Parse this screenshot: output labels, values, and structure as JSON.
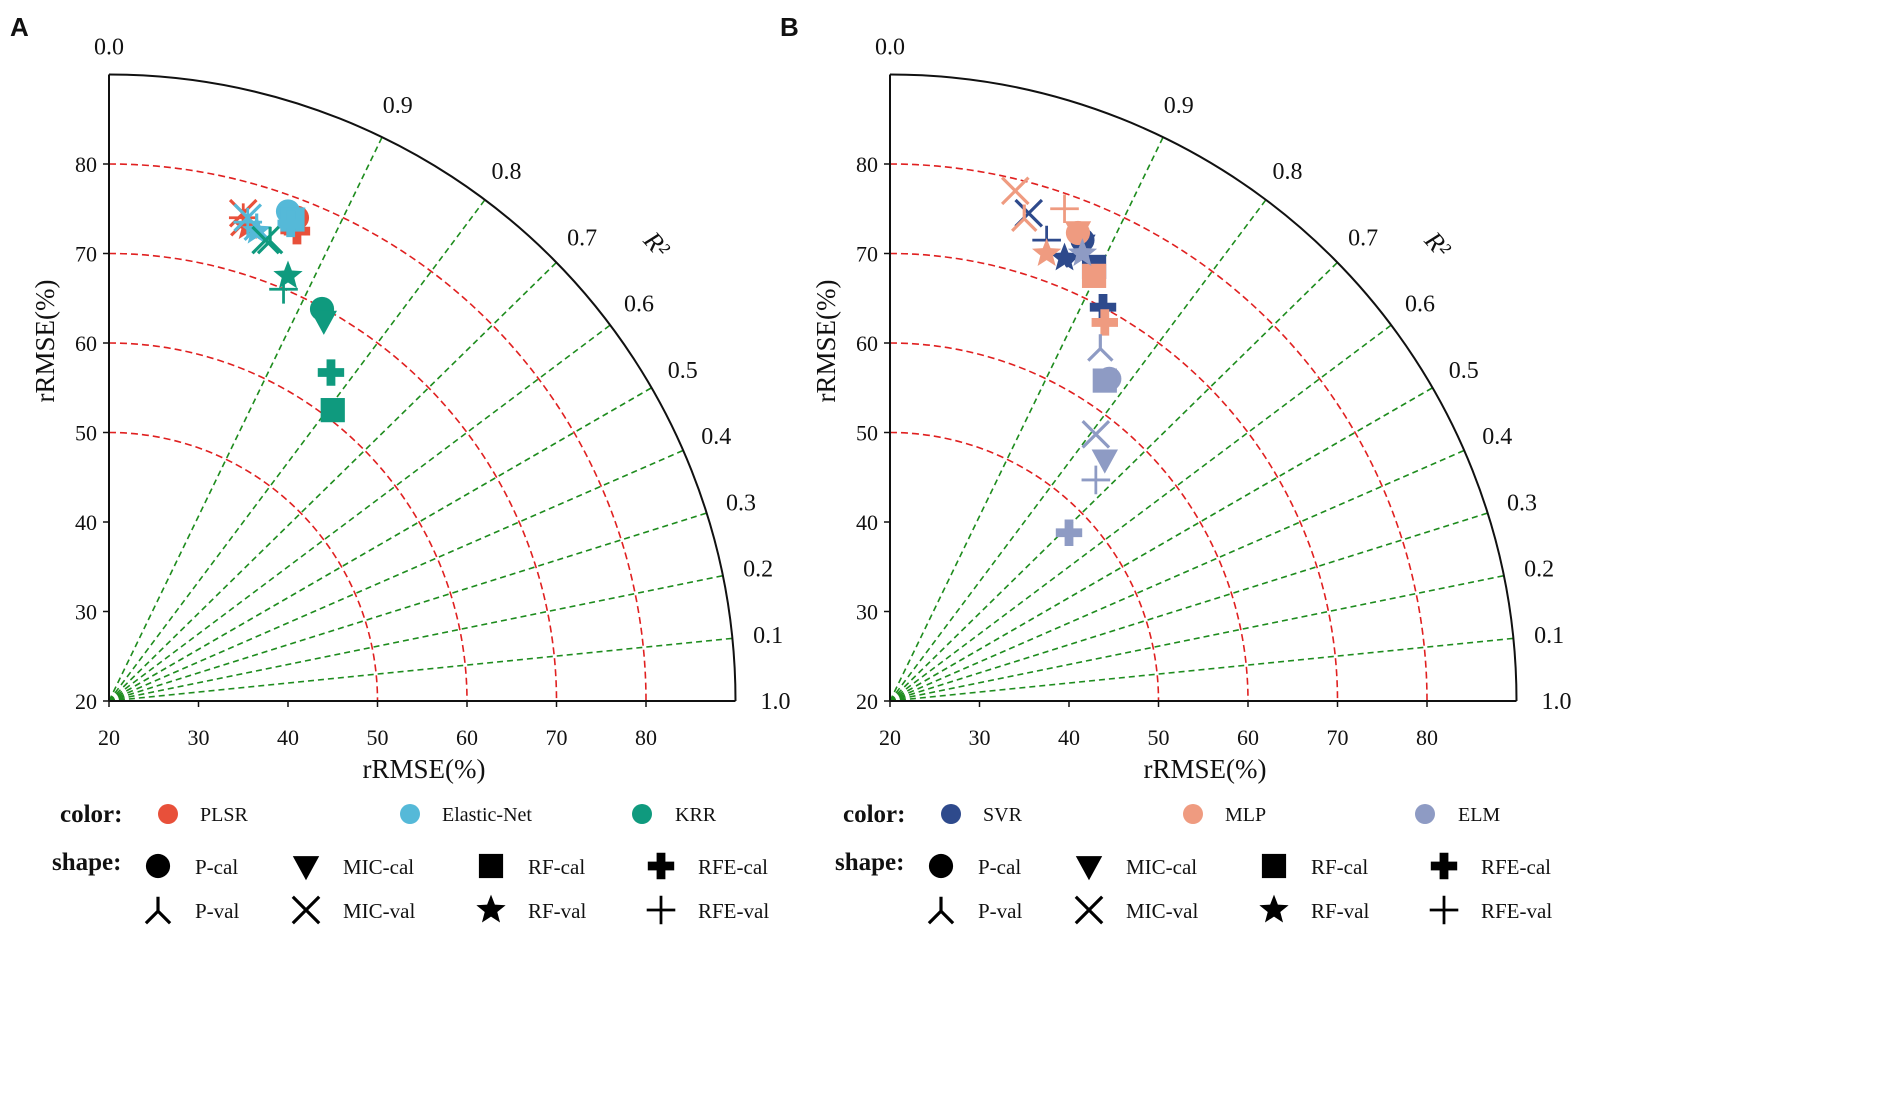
{
  "chart_data": [
    {
      "type": "scatter",
      "subtype": "taylor-like polar",
      "panel_label": "A",
      "xlabel": "rRMSE(%)",
      "ylabel": "rRMSE(%)",
      "angle_label": "R²",
      "xlim": [
        20,
        90
      ],
      "ylim": [
        20,
        90
      ],
      "x_ticks": [
        "20",
        "30",
        "40",
        "50",
        "60",
        "70",
        "80"
      ],
      "y_ticks": [
        "20",
        "30",
        "40",
        "50",
        "60",
        "70",
        "80"
      ],
      "r2_ticks": [
        "0.0",
        "0.1",
        "0.2",
        "0.3",
        "0.4",
        "0.5",
        "0.6",
        "0.7",
        "0.8",
        "0.9",
        "1.0"
      ],
      "arc_radii": [
        50,
        60,
        70,
        80
      ],
      "legend_color_title": "color:",
      "legend_shape_title": "shape:",
      "models": [
        {
          "name": "PLSR",
          "color": "#e8503a"
        },
        {
          "name": "Elastic-Net",
          "color": "#55b9d8"
        },
        {
          "name": "KRR",
          "color": "#0f9a7e"
        }
      ],
      "points": [
        {
          "model": "PLSR",
          "shape": "P-cal",
          "x": 41.0,
          "y": 74.0
        },
        {
          "model": "PLSR",
          "shape": "MIC-cal",
          "x": 40.5,
          "y": 73.5
        },
        {
          "model": "PLSR",
          "shape": "RF-cal",
          "x": 40.5,
          "y": 73.5
        },
        {
          "model": "PLSR",
          "shape": "RFE-cal",
          "x": 41.0,
          "y": 72.5
        },
        {
          "model": "PLSR",
          "shape": "P-val",
          "x": 35.0,
          "y": 73.5
        },
        {
          "model": "PLSR",
          "shape": "MIC-val",
          "x": 35.0,
          "y": 74.5
        },
        {
          "model": "PLSR",
          "shape": "RF-val",
          "x": 35.5,
          "y": 73.0
        },
        {
          "model": "PLSR",
          "shape": "RFE-val",
          "x": 35.0,
          "y": 74.0
        },
        {
          "model": "Elastic-Net",
          "shape": "P-cal",
          "x": 40.0,
          "y": 74.7
        },
        {
          "model": "Elastic-Net",
          "shape": "MIC-cal",
          "x": 40.5,
          "y": 74.0
        },
        {
          "model": "Elastic-Net",
          "shape": "RF-cal",
          "x": 40.5,
          "y": 73.8
        },
        {
          "model": "Elastic-Net",
          "shape": "RFE-cal",
          "x": 40.3,
          "y": 73.3
        },
        {
          "model": "Elastic-Net",
          "shape": "P-val",
          "x": 36.5,
          "y": 73.0
        },
        {
          "model": "Elastic-Net",
          "shape": "MIC-val",
          "x": 35.5,
          "y": 74.0
        },
        {
          "model": "Elastic-Net",
          "shape": "RF-val",
          "x": 36.5,
          "y": 72.5
        },
        {
          "model": "Elastic-Net",
          "shape": "RFE-val",
          "x": 35.5,
          "y": 73.5
        },
        {
          "model": "KRR",
          "shape": "P-cal",
          "x": 43.8,
          "y": 63.8
        },
        {
          "model": "KRR",
          "shape": "MIC-cal",
          "x": 44.0,
          "y": 62.5
        },
        {
          "model": "KRR",
          "shape": "RF-cal",
          "x": 45.0,
          "y": 52.5
        },
        {
          "model": "KRR",
          "shape": "RFE-cal",
          "x": 44.8,
          "y": 56.7
        },
        {
          "model": "KRR",
          "shape": "P-val",
          "x": 38.0,
          "y": 71.5
        },
        {
          "model": "KRR",
          "shape": "MIC-val",
          "x": 37.5,
          "y": 71.5
        },
        {
          "model": "KRR",
          "shape": "RF-val",
          "x": 40.0,
          "y": 67.5
        },
        {
          "model": "KRR",
          "shape": "RFE-val",
          "x": 39.5,
          "y": 66.0
        }
      ]
    },
    {
      "type": "scatter",
      "subtype": "taylor-like polar",
      "panel_label": "B",
      "xlabel": "rRMSE(%)",
      "ylabel": "rRMSE(%)",
      "angle_label": "R²",
      "xlim": [
        20,
        90
      ],
      "ylim": [
        20,
        90
      ],
      "x_ticks": [
        "20",
        "30",
        "40",
        "50",
        "60",
        "70",
        "80"
      ],
      "y_ticks": [
        "20",
        "30",
        "40",
        "50",
        "60",
        "70",
        "80"
      ],
      "r2_ticks": [
        "0.0",
        "0.1",
        "0.2",
        "0.3",
        "0.4",
        "0.5",
        "0.6",
        "0.7",
        "0.8",
        "0.9",
        "1.0"
      ],
      "arc_radii": [
        50,
        60,
        70,
        80
      ],
      "legend_color_title": "color:",
      "legend_shape_title": "shape:",
      "models": [
        {
          "name": "SVR",
          "color": "#2e4a8c"
        },
        {
          "name": "MLP",
          "color": "#ef9b80"
        },
        {
          "name": "ELM",
          "color": "#8e9bc4"
        }
      ],
      "points": [
        {
          "model": "SVR",
          "shape": "P-cal",
          "x": 41.5,
          "y": 71.5
        },
        {
          "model": "SVR",
          "shape": "MIC-cal",
          "x": 41.5,
          "y": 71.0
        },
        {
          "model": "SVR",
          "shape": "RF-cal",
          "x": 42.8,
          "y": 68.5
        },
        {
          "model": "SVR",
          "shape": "RFE-cal",
          "x": 43.8,
          "y": 64.0
        },
        {
          "model": "SVR",
          "shape": "P-val",
          "x": 41.0,
          "y": 70.0
        },
        {
          "model": "SVR",
          "shape": "MIC-val",
          "x": 35.5,
          "y": 74.5
        },
        {
          "model": "SVR",
          "shape": "RF-val",
          "x": 39.5,
          "y": 69.5
        },
        {
          "model": "SVR",
          "shape": "RFE-val",
          "x": 37.5,
          "y": 71.5
        },
        {
          "model": "MLP",
          "shape": "P-cal",
          "x": 41.0,
          "y": 72.3
        },
        {
          "model": "MLP",
          "shape": "MIC-cal",
          "x": 41.0,
          "y": 72.5
        },
        {
          "model": "MLP",
          "shape": "RF-cal",
          "x": 42.8,
          "y": 67.5
        },
        {
          "model": "MLP",
          "shape": "RFE-cal",
          "x": 44.0,
          "y": 62.3
        },
        {
          "model": "MLP",
          "shape": "P-val",
          "x": 35.0,
          "y": 74.0
        },
        {
          "model": "MLP",
          "shape": "MIC-val",
          "x": 34.0,
          "y": 77.0
        },
        {
          "model": "MLP",
          "shape": "RF-val",
          "x": 37.5,
          "y": 70.0
        },
        {
          "model": "MLP",
          "shape": "RFE-val",
          "x": 39.5,
          "y": 75.0
        },
        {
          "model": "ELM",
          "shape": "P-cal",
          "x": 44.5,
          "y": 56.0
        },
        {
          "model": "ELM",
          "shape": "MIC-cal",
          "x": 44.0,
          "y": 47.0
        },
        {
          "model": "ELM",
          "shape": "RF-cal",
          "x": 44.0,
          "y": 55.8
        },
        {
          "model": "ELM",
          "shape": "RFE-cal",
          "x": 40.0,
          "y": 38.8
        },
        {
          "model": "ELM",
          "shape": "P-val",
          "x": 43.5,
          "y": 59.5
        },
        {
          "model": "ELM",
          "shape": "MIC-val",
          "x": 43.0,
          "y": 49.8
        },
        {
          "model": "ELM",
          "shape": "RF-val",
          "x": 41.5,
          "y": 70.0
        },
        {
          "model": "ELM",
          "shape": "RFE-val",
          "x": 43.0,
          "y": 44.7
        }
      ]
    }
  ],
  "legend_shapes": [
    "P-cal",
    "MIC-cal",
    "RF-cal",
    "RFE-cal",
    "P-val",
    "MIC-val",
    "RF-val",
    "RFE-val"
  ]
}
